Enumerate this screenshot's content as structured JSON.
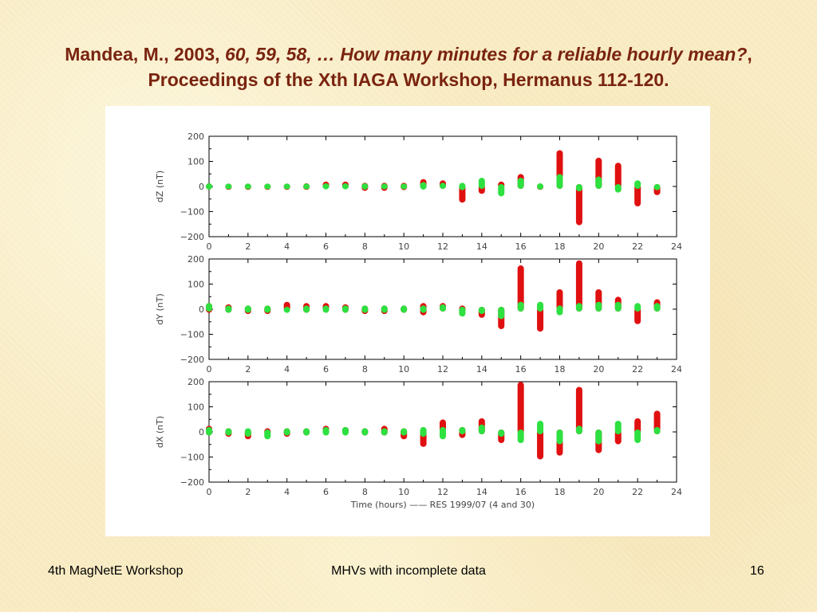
{
  "title": {
    "author": "Mandea, M., 2003, ",
    "paper_title": "60, 59, 58, … How many minutes for a reliable hourly mean?",
    "comma": ",",
    "line2": "Proceedings of the Xth IAGA Workshop, Hermanus 112-120."
  },
  "footer": {
    "left": "4th MagNetE Workshop",
    "center": "MHVs with incomplete data",
    "page": "16"
  },
  "colors": {
    "red": "#e01010",
    "green": "#2ee040"
  },
  "chart_data": {
    "type": "scatter",
    "xlabel": "Time (hours) —— RES 1999/07 (4 and 30)",
    "xlim": [
      0,
      24
    ],
    "xticks": [
      0,
      2,
      4,
      6,
      8,
      10,
      12,
      14,
      16,
      18,
      20,
      22,
      24
    ],
    "yticks": [
      200,
      100,
      0,
      -100,
      -200
    ],
    "ytick_labels": [
      "200",
      "100",
      "0",
      "−100",
      "−200"
    ],
    "ylim": [
      -200,
      200
    ],
    "hours": [
      0,
      1,
      2,
      3,
      4,
      5,
      6,
      7,
      8,
      9,
      10,
      11,
      12,
      13,
      14,
      15,
      16,
      17,
      18,
      19,
      20,
      21,
      22,
      23
    ],
    "panels": [
      {
        "ylabel": "dZ (nT)",
        "red": [
          [
            -3,
            3
          ],
          [
            -4,
            2
          ],
          [
            -4,
            2
          ],
          [
            -4,
            2
          ],
          [
            -4,
            2
          ],
          [
            -4,
            3
          ],
          [
            0,
            10
          ],
          [
            0,
            10
          ],
          [
            -8,
            5
          ],
          [
            -8,
            5
          ],
          [
            -5,
            5
          ],
          [
            0,
            20
          ],
          [
            0,
            15
          ],
          [
            -55,
            0
          ],
          [
            -20,
            0
          ],
          [
            0,
            10
          ],
          [
            0,
            40
          ],
          [
            -4,
            2
          ],
          [
            0,
            135
          ],
          [
            -145,
            0
          ],
          [
            0,
            105
          ],
          [
            0,
            85
          ],
          [
            -70,
            0
          ],
          [
            -25,
            0
          ]
        ],
        "green": [
          [
            -3,
            3
          ],
          [
            -2,
            2
          ],
          [
            -2,
            2
          ],
          [
            -2,
            2
          ],
          [
            -2,
            2
          ],
          [
            -2,
            2
          ],
          [
            -2,
            3
          ],
          [
            -2,
            3
          ],
          [
            -3,
            3
          ],
          [
            -2,
            2
          ],
          [
            -2,
            2
          ],
          [
            -3,
            8
          ],
          [
            0,
            5
          ],
          [
            -5,
            5
          ],
          [
            0,
            25
          ],
          [
            -30,
            0
          ],
          [
            0,
            25
          ],
          [
            -3,
            3
          ],
          [
            0,
            40
          ],
          [
            -10,
            0
          ],
          [
            0,
            30
          ],
          [
            -15,
            0
          ],
          [
            0,
            15
          ],
          [
            -5,
            0
          ]
        ]
      },
      {
        "ylabel": "dY (nT)",
        "red": [
          [
            -5,
            15
          ],
          [
            -5,
            10
          ],
          [
            -10,
            5
          ],
          [
            -10,
            5
          ],
          [
            0,
            20
          ],
          [
            -5,
            15
          ],
          [
            0,
            15
          ],
          [
            -5,
            10
          ],
          [
            -10,
            5
          ],
          [
            -10,
            5
          ],
          [
            -5,
            5
          ],
          [
            -15,
            15
          ],
          [
            0,
            15
          ],
          [
            -5,
            5
          ],
          [
            -25,
            0
          ],
          [
            -70,
            0
          ],
          [
            0,
            165
          ],
          [
            -80,
            0
          ],
          [
            0,
            70
          ],
          [
            0,
            185
          ],
          [
            0,
            70
          ],
          [
            0,
            40
          ],
          [
            -50,
            0
          ],
          [
            0,
            30
          ]
        ],
        "green": [
          [
            0,
            15
          ],
          [
            -5,
            5
          ],
          [
            -5,
            5
          ],
          [
            -5,
            5
          ],
          [
            -5,
            0
          ],
          [
            -5,
            5
          ],
          [
            -5,
            5
          ],
          [
            -5,
            5
          ],
          [
            -5,
            5
          ],
          [
            -5,
            5
          ],
          [
            -5,
            5
          ],
          [
            -5,
            5
          ],
          [
            0,
            10
          ],
          [
            -20,
            0
          ],
          [
            -10,
            0
          ],
          [
            -30,
            0
          ],
          [
            0,
            20
          ],
          [
            0,
            20
          ],
          [
            -15,
            5
          ],
          [
            0,
            15
          ],
          [
            0,
            20
          ],
          [
            0,
            20
          ],
          [
            0,
            15
          ],
          [
            0,
            15
          ]
        ]
      },
      {
        "ylabel": "dX (nT)",
        "red": [
          [
            -5,
            15
          ],
          [
            -10,
            5
          ],
          [
            -20,
            0
          ],
          [
            -5,
            5
          ],
          [
            -10,
            5
          ],
          [
            -5,
            5
          ],
          [
            0,
            15
          ],
          [
            0,
            10
          ],
          [
            -5,
            5
          ],
          [
            -5,
            15
          ],
          [
            -20,
            5
          ],
          [
            -50,
            0
          ],
          [
            0,
            40
          ],
          [
            -15,
            10
          ],
          [
            0,
            45
          ],
          [
            -35,
            0
          ],
          [
            0,
            190
          ],
          [
            -100,
            0
          ],
          [
            -85,
            0
          ],
          [
            0,
            170
          ],
          [
            -75,
            0
          ],
          [
            -40,
            0
          ],
          [
            0,
            45
          ],
          [
            0,
            75
          ]
        ],
        "green": [
          [
            -5,
            10
          ],
          [
            -5,
            5
          ],
          [
            -10,
            5
          ],
          [
            -20,
            0
          ],
          [
            -5,
            5
          ],
          [
            -5,
            5
          ],
          [
            -5,
            10
          ],
          [
            -5,
            10
          ],
          [
            -5,
            5
          ],
          [
            -5,
            5
          ],
          [
            -5,
            5
          ],
          [
            -10,
            10
          ],
          [
            -20,
            10
          ],
          [
            0,
            10
          ],
          [
            0,
            20
          ],
          [
            -10,
            0
          ],
          [
            -35,
            0
          ],
          [
            0,
            35
          ],
          [
            -40,
            0
          ],
          [
            0,
            15
          ],
          [
            -40,
            0
          ],
          [
            0,
            35
          ],
          [
            -35,
            0
          ],
          [
            0,
            10
          ]
        ]
      }
    ]
  }
}
